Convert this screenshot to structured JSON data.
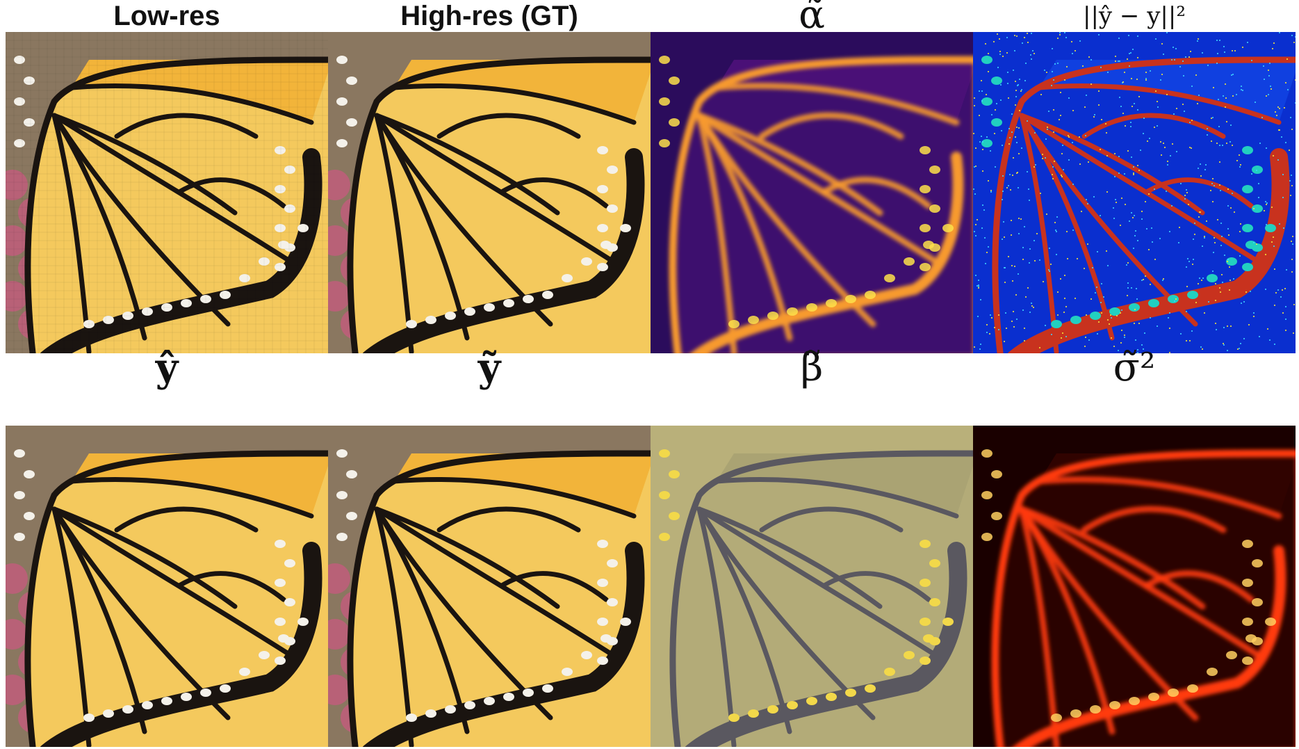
{
  "figure": {
    "rows": [
      {
        "panels": [
          {
            "id": "low-res",
            "title": "Low-res",
            "style": "plain",
            "palette": "rgb"
          },
          {
            "id": "high-res-gt",
            "title": "High-res (GT)",
            "style": "plain",
            "palette": "rgb"
          },
          {
            "id": "alpha",
            "title": "α̃",
            "style": "math",
            "palette": "plasma"
          },
          {
            "id": "error",
            "title": "||ŷ − y||²",
            "style": "math-small",
            "palette": "jet"
          }
        ]
      },
      {
        "panels": [
          {
            "id": "y-hat",
            "title": "ŷ",
            "style": "math-bold",
            "palette": "rgb"
          },
          {
            "id": "y-tilde",
            "title": "ỹ",
            "style": "math-bold",
            "palette": "rgb"
          },
          {
            "id": "beta",
            "title": "β̃",
            "style": "math",
            "palette": "cividis"
          },
          {
            "id": "sigma",
            "title": "σ̃²",
            "style": "math",
            "palette": "hot"
          }
        ]
      }
    ],
    "colors": {
      "wing_orange": "#f2b43a",
      "wing_yellow": "#f4c95d",
      "vein_black": "#1a1410",
      "spot_white": "#f4f1ea",
      "flower_pink": "#c7597f",
      "background_olive": "#8a7760",
      "plasma_bg": "#2b0c5c",
      "plasma_line": "#f79a2d",
      "jet_bg": "#0a2fcf",
      "jet_line": "#c8321e",
      "cividis_bg": "#b9b07a",
      "cividis_line": "#f2d84a",
      "hot_bg": "#1a0000",
      "hot_line": "#ff3a10"
    }
  }
}
